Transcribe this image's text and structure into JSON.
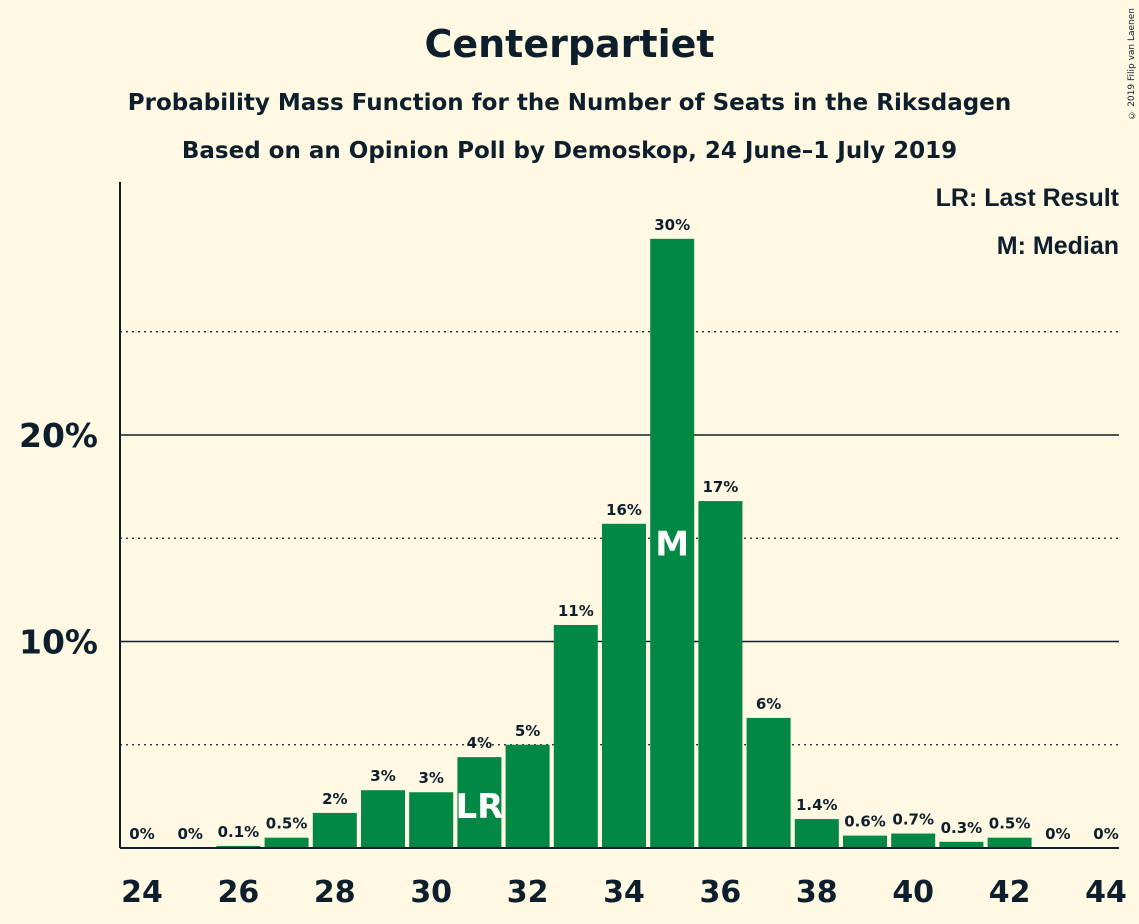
{
  "chart_data": {
    "type": "bar",
    "title": "Centerpartiet",
    "subtitle": "Probability Mass Function for the Number of Seats in the Riksdagen",
    "subtitle2": "Based on an Opinion Poll by Demoskop, 24 June–1 July 2019",
    "copyright": "© 2019 Filip van Laenen",
    "legend": [
      "LR: Last Result",
      "M: Median"
    ],
    "bar_color": "#008844",
    "categories": [
      24,
      25,
      26,
      27,
      28,
      29,
      30,
      31,
      32,
      33,
      34,
      35,
      36,
      37,
      38,
      39,
      40,
      41,
      42,
      43,
      44
    ],
    "values": [
      0,
      0,
      0.1,
      0.5,
      1.7,
      2.8,
      2.7,
      4.4,
      5.0,
      10.8,
      15.7,
      29.5,
      16.8,
      6.3,
      1.4,
      0.6,
      0.7,
      0.3,
      0.5,
      0,
      0
    ],
    "data_labels": [
      "0%",
      "0%",
      "0.1%",
      "0.5%",
      "2%",
      "3%",
      "3%",
      "4%",
      "5%",
      "11%",
      "16%",
      "30%",
      "17%",
      "6%",
      "1.4%",
      "0.6%",
      "0.7%",
      "0.3%",
      "0.5%",
      "0%",
      "0%"
    ],
    "x_ticks": [
      "24",
      "26",
      "28",
      "30",
      "32",
      "34",
      "36",
      "38",
      "40",
      "42",
      "44"
    ],
    "y_ticks": [
      {
        "value": 10,
        "label": "10%"
      },
      {
        "value": 20,
        "label": "20%"
      }
    ],
    "minor_gridlines": [
      5,
      15,
      25
    ],
    "ylim": [
      0,
      32
    ],
    "markers": [
      {
        "category": 31,
        "text": "LR"
      },
      {
        "category": 35,
        "text": "M"
      }
    ]
  }
}
